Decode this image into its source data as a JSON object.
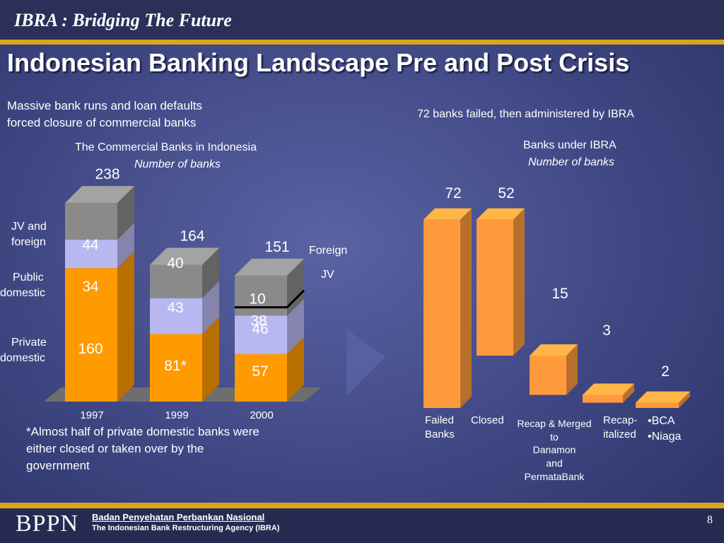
{
  "header": {
    "title": "IBRA : Bridging The Future"
  },
  "slide": {
    "title": "Indonesian Banking Landscape Pre and Post Crisis"
  },
  "left": {
    "intro_line1": "Massive bank runs and loan defaults",
    "intro_line2": "forced closure of commercial banks",
    "chart_title": "The Commercial Banks in Indonesia",
    "chart_subtitle": "Number of banks",
    "label_jv_line1": "JV and",
    "label_jv_line2": "foreign",
    "label_public_line1": "Public",
    "label_public_line2": "domestic",
    "label_private_line1": "Private",
    "label_private_line2": "domestic",
    "foreign_jv_line1": "Foreign",
    "foreign_jv_line2": "JV",
    "note_line1": "*Almost half of private domestic banks were",
    "note_line2": "either closed or taken over by the",
    "note_line3": "government"
  },
  "right": {
    "intro": "72 banks failed, then  administered by IBRA",
    "chart_title": "Banks under IBRA",
    "chart_subtitle": "Number of banks",
    "cat_failed_line1": "Failed",
    "cat_failed_line2": "Banks",
    "cat_closed": "Closed",
    "cat_recap_merged_line1": "Recap & Merged",
    "cat_recap_merged_line2": "to",
    "cat_recap_merged_line3": "Danamon",
    "cat_recap_merged_line4": "and",
    "cat_recap_merged_line5": "PermataBank",
    "cat_recap_line1": "Recap-",
    "cat_recap_line2": "italized",
    "cat_bca": "•BCA",
    "cat_niaga": "•Niaga"
  },
  "chart_data": [
    {
      "type": "bar",
      "title": "The Commercial Banks in Indonesia",
      "subtitle": "Number of banks",
      "stacked": true,
      "categories": [
        "1997",
        "1999",
        "2000"
      ],
      "totals": [
        "238",
        "164",
        "151"
      ],
      "series": [
        {
          "name": "Private domestic",
          "values": [
            160,
            81,
            57
          ],
          "labels": [
            "160",
            "81*",
            "57"
          ],
          "color": "#ff9a00"
        },
        {
          "name": "Public domestic",
          "values": [
            34,
            43,
            46
          ],
          "labels": [
            "34",
            "43",
            "46"
          ],
          "color": "#b8b8f0"
        },
        {
          "name": "JV and foreign",
          "values": [
            44,
            40,
            48
          ],
          "labels": [
            "44",
            "40",
            ""
          ],
          "color": "#8a8a8a"
        }
      ],
      "segment_2000_split": {
        "values": [
          10,
          38
        ],
        "labels": [
          "10",
          "38"
        ]
      },
      "ylim": [
        0,
        238
      ]
    },
    {
      "type": "bar",
      "title": "Banks under IBRA",
      "subtitle": "Number of banks",
      "waterfall": true,
      "categories": [
        "Failed Banks",
        "Closed",
        "Recap & Merged to Danamon and PermataBank",
        "Recap-italized",
        "BCA Niaga"
      ],
      "values": [
        72,
        52,
        15,
        3,
        2
      ],
      "labels": [
        "72",
        "52",
        "15",
        "3",
        "2"
      ],
      "color": "#ff9a3c",
      "ylim": [
        0,
        72
      ]
    }
  ]
}
